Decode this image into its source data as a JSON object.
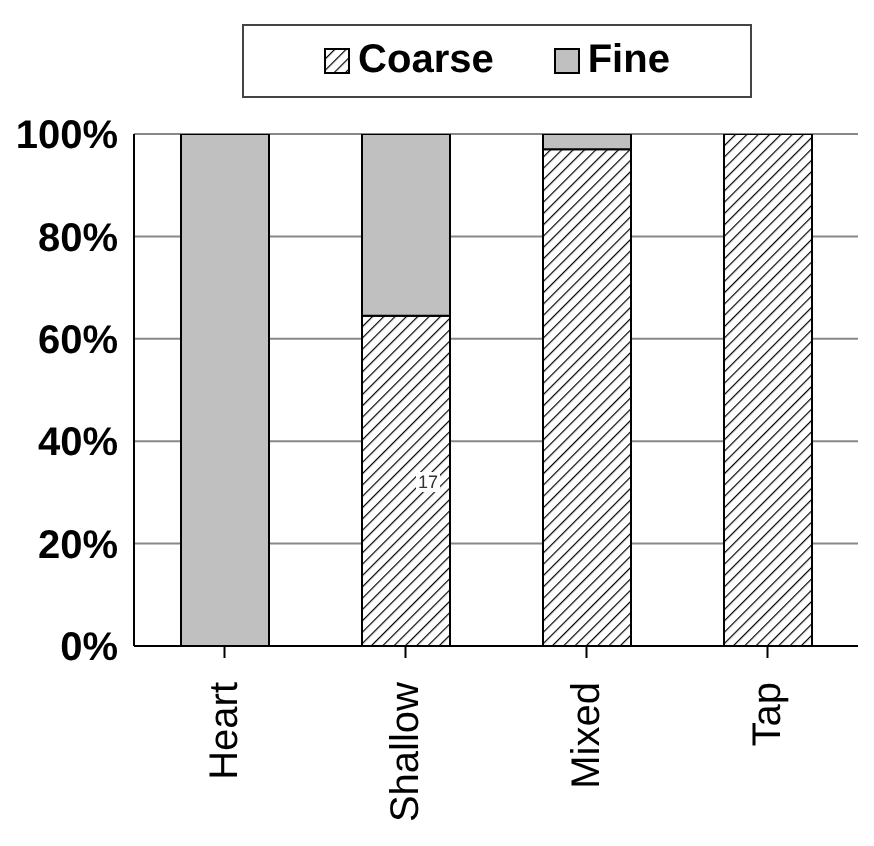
{
  "chart_data": {
    "type": "bar",
    "stacked": true,
    "categories": [
      "Heart",
      "Shallow",
      "Mixed",
      "Tap"
    ],
    "series": [
      {
        "name": "Coarse",
        "color": "#000000",
        "values": [
          0,
          64.5,
          97,
          100
        ]
      },
      {
        "name": "Fine",
        "color": "#c0c0c0",
        "values": [
          100,
          35.5,
          3,
          0
        ]
      }
    ],
    "ylim": [
      0,
      100
    ],
    "yticks": [
      {
        "value": 0,
        "label": "0%"
      },
      {
        "value": 20,
        "label": "20%"
      },
      {
        "value": 40,
        "label": "40%"
      },
      {
        "value": 60,
        "label": "60%"
      },
      {
        "value": 80,
        "label": "80%"
      },
      {
        "value": 100,
        "label": "100%"
      }
    ],
    "grid": "y",
    "legend": "top",
    "annotations": [
      "17"
    ]
  }
}
